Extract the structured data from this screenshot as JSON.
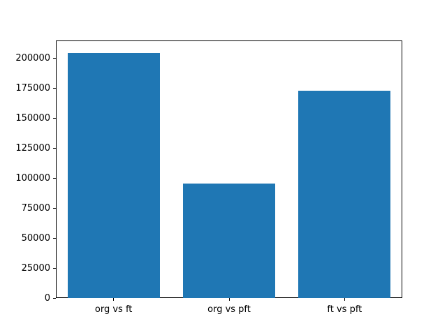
{
  "chart_data": {
    "type": "bar",
    "title": "",
    "xlabel": "",
    "ylabel": "",
    "categories": [
      "org vs ft",
      "org vs pft",
      "ft vs pft"
    ],
    "values": [
      204600,
      95400,
      172700
    ],
    "yticks": [
      0,
      25000,
      50000,
      75000,
      100000,
      125000,
      150000,
      175000,
      200000
    ],
    "ylim": [
      0,
      214830
    ],
    "bar_color": "#1f77b4",
    "bar_width_fraction": 0.8,
    "grid": false,
    "legend": null,
    "text_color": "#000000",
    "spine_color": "#000000",
    "background_color": "#ffffff"
  }
}
